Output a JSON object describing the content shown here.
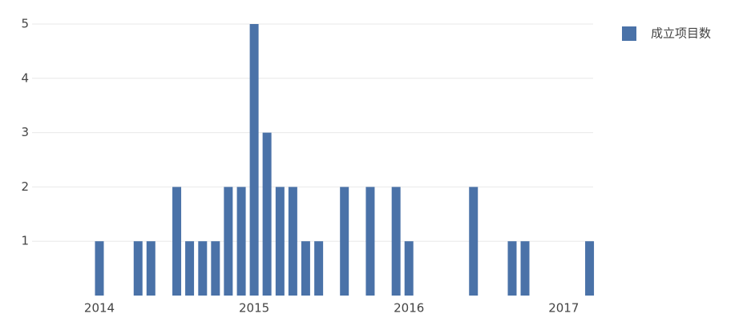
{
  "chart_data": {
    "type": "bar",
    "x": [
      2014,
      2014.25,
      2014.333,
      2014.5,
      2014.583,
      2014.667,
      2014.75,
      2014.833,
      2014.917,
      2015,
      2015.083,
      2015.167,
      2015.25,
      2015.333,
      2015.417,
      2015.583,
      2015.75,
      2015.917,
      2016,
      2016.417,
      2016.667,
      2016.75,
      2017.167
    ],
    "series": [
      {
        "name": "成立项目数",
        "color": "#4a72a8",
        "values": [
          1,
          1,
          1,
          2,
          1,
          1,
          1,
          2,
          2,
          5,
          3,
          2,
          2,
          1,
          1,
          2,
          2,
          2,
          1,
          2,
          1,
          1,
          1
        ]
      }
    ],
    "xlim": [
      2013.565,
      2017.19
    ],
    "xticks": [
      2014,
      2015,
      2016,
      2017
    ],
    "ylim": [
      0,
      5
    ],
    "yticks": [
      1,
      2,
      3,
      4,
      5
    ],
    "grid": true,
    "legend": "right"
  }
}
